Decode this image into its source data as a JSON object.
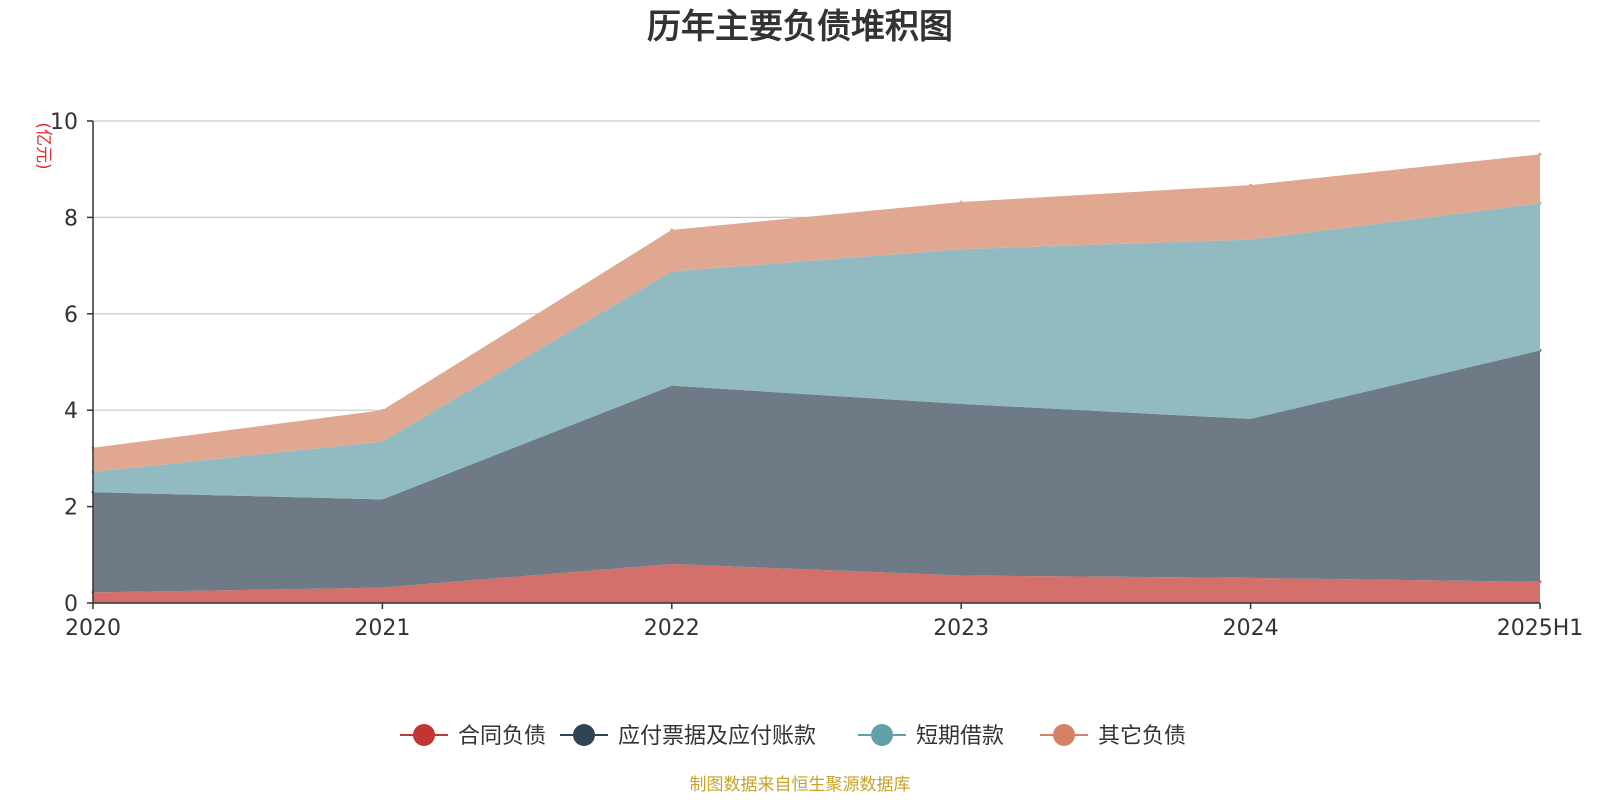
{
  "chart_data": {
    "type": "area",
    "stacked": true,
    "title": "历年主要负债堆积图",
    "ylabel": "(亿元)",
    "xlabel": "",
    "categories": [
      "2020",
      "2021",
      "2022",
      "2023",
      "2024",
      "2025H1"
    ],
    "ylim": [
      0,
      10
    ],
    "yticks": [
      0,
      2,
      4,
      6,
      8,
      10
    ],
    "grid": true,
    "legend_position": "bottom",
    "series": [
      {
        "name": "合同负债",
        "values": [
          0.22,
          0.32,
          0.81,
          0.57,
          0.52,
          0.44
        ],
        "color": "#c23531",
        "fill": "#d4706c"
      },
      {
        "name": "应付票据及应付账款",
        "values": [
          2.08,
          1.83,
          3.7,
          3.56,
          3.3,
          4.8
        ],
        "color": "#2f4554",
        "fill": "#6e7b86"
      },
      {
        "name": "短期借款",
        "values": [
          0.42,
          1.2,
          2.37,
          3.21,
          3.72,
          3.05
        ],
        "color": "#61a0a8",
        "fill": "#92bbc1"
      },
      {
        "name": "其它负债",
        "values": [
          0.5,
          0.65,
          0.86,
          0.98,
          1.13,
          1.02
        ],
        "color": "#d48265",
        "fill": "#e0a791"
      }
    ]
  },
  "source_note": "制图数据来自恒生聚源数据库"
}
